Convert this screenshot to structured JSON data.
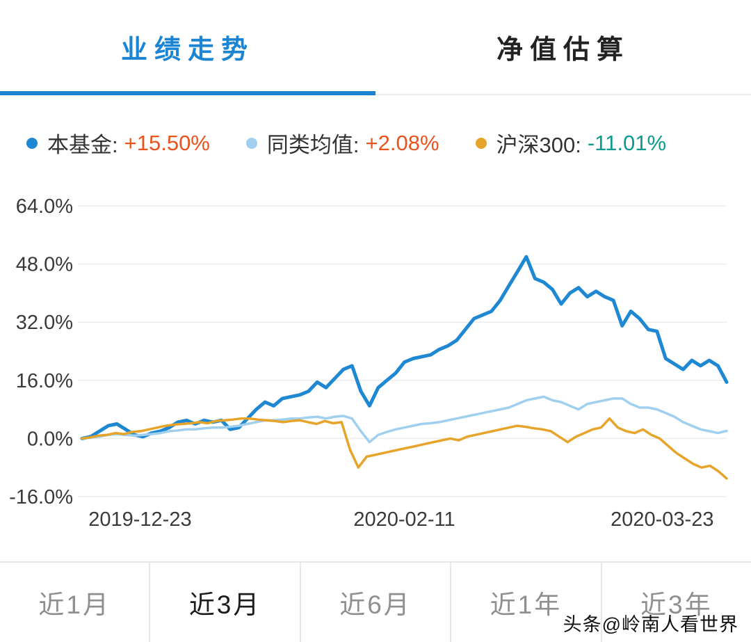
{
  "top_tabs": {
    "items": [
      {
        "label": "业绩走势"
      },
      {
        "label": "净值估算"
      }
    ],
    "active_index": 0,
    "accent_color": "#1b85d3"
  },
  "legend": {
    "items": [
      {
        "label": "本基金:",
        "value": "+15.50%",
        "dot_color": "#1e88d2",
        "value_color": "#e8541e"
      },
      {
        "label": "同类均值:",
        "value": "+2.08%",
        "dot_color": "#a0d0ee",
        "value_color": "#e8541e"
      },
      {
        "label": "沪深300:",
        "value": "-11.01%",
        "dot_color": "#e6a42a",
        "value_color": "#0e9a8e"
      }
    ]
  },
  "chart_data": {
    "type": "line",
    "title": "",
    "xlabel": "",
    "ylabel": "",
    "grid": true,
    "legend_position": "top",
    "ylim": [
      -16,
      64
    ],
    "y_ticks": [
      64,
      48,
      32,
      16,
      0,
      -16
    ],
    "y_tick_labels": [
      "64.0%",
      "48.0%",
      "32.0%",
      "16.0%",
      "0.0%",
      "-16.0%"
    ],
    "x_ticks": [
      "2019-12-23",
      "2020-02-11",
      "2020-03-23"
    ],
    "x_tick_pos": [
      0.09,
      0.5,
      0.9
    ],
    "series": [
      {
        "name": "本基金",
        "final_value_pct": 15.5,
        "color": "#1e88d2",
        "width": 5,
        "values": [
          0,
          0.5,
          2,
          3.5,
          4,
          2.5,
          1,
          0.5,
          1.5,
          2,
          3,
          4.5,
          5,
          4,
          5,
          4.5,
          5,
          2.5,
          3,
          5.5,
          8,
          10,
          9,
          11,
          11.5,
          12,
          13,
          15.5,
          14,
          16.5,
          19,
          20,
          13,
          9,
          14,
          16,
          18,
          21,
          22,
          22.5,
          23,
          24.5,
          25.5,
          27,
          30,
          33,
          34,
          35,
          38,
          42,
          46,
          50,
          44,
          43,
          41,
          37,
          40,
          41.5,
          39,
          40.5,
          39,
          38,
          31,
          35,
          33,
          30,
          29.5,
          22,
          20.5,
          19,
          21.5,
          20,
          21.5,
          20,
          15.5
        ]
      },
      {
        "name": "同类均值",
        "final_value_pct": 2.08,
        "color": "#a0d0ee",
        "width": 3.5,
        "values": [
          0,
          0.2,
          0.5,
          1,
          1.2,
          1,
          0.8,
          1,
          1.2,
          1.5,
          2,
          2.2,
          2.5,
          2.5,
          2.8,
          3,
          3,
          3.2,
          3.5,
          4,
          4.5,
          5,
          5,
          5.2,
          5.5,
          5.5,
          5.8,
          6,
          5.5,
          6,
          6.2,
          5.5,
          2,
          -1,
          1,
          1.8,
          2.5,
          3,
          3.5,
          4,
          4.2,
          4.5,
          5,
          5.5,
          6,
          6.5,
          7,
          7.5,
          8,
          8.5,
          9.5,
          10.5,
          11,
          11.5,
          10.5,
          10,
          9,
          8,
          9.5,
          10,
          10.5,
          11,
          11,
          9.5,
          8.5,
          8.5,
          8,
          7,
          6,
          4.5,
          3.5,
          2.5,
          2,
          1.5,
          2.08
        ]
      },
      {
        "name": "沪深300",
        "final_value_pct": -11.01,
        "color": "#e6a42a",
        "width": 3.5,
        "values": [
          0,
          0.3,
          0.8,
          1,
          1.5,
          1.2,
          1.8,
          2,
          2.5,
          3,
          3.5,
          3.8,
          4,
          4.2,
          4.5,
          4.2,
          4.8,
          5,
          5.2,
          5.5,
          5.5,
          5.2,
          5,
          4.8,
          4.5,
          4.8,
          5,
          4.5,
          4,
          4.8,
          4.2,
          4.5,
          -3,
          -8,
          -5,
          -4.5,
          -4,
          -3.5,
          -3,
          -2.5,
          -2,
          -1.5,
          -1,
          -0.5,
          0,
          -0.5,
          0.5,
          1,
          1.5,
          2,
          2.5,
          3,
          3.5,
          3.2,
          2.8,
          2.5,
          2,
          0.5,
          -1,
          0.5,
          1.5,
          2.5,
          3,
          5.5,
          3,
          2,
          1.5,
          2.5,
          1,
          0,
          -2,
          -4,
          -5.5,
          -7,
          -8,
          -7.5,
          -9,
          -11.01
        ]
      }
    ]
  },
  "range_tabs": {
    "items": [
      "近1月",
      "近3月",
      "近6月",
      "近1年",
      "近3年"
    ],
    "active_index": 1
  },
  "watermark": "头条@岭南人看世界"
}
